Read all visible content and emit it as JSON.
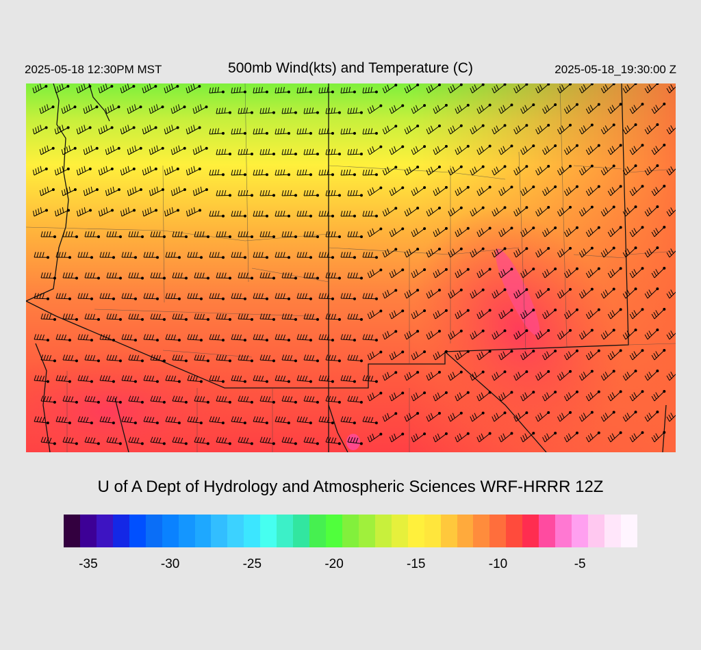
{
  "header": {
    "local_time": "2025-05-18 12:30PM MST",
    "title": "500mb Wind(kts) and Temperature (C)",
    "utc_time": "2025-05-18_19:30:00 Z"
  },
  "credit": "U of A Dept of Hydrology and Atmospheric Sciences WRF-HRRR 12Z",
  "colorbar": {
    "colors": [
      "#33003f",
      "#3d0096",
      "#3d14c2",
      "#1428e6",
      "#0050ff",
      "#0a6ef7",
      "#0a82ff",
      "#1496ff",
      "#1ea8ff",
      "#32beff",
      "#3cd2ff",
      "#3ce6ff",
      "#46fff0",
      "#3cf0c8",
      "#32e6a0",
      "#46f050",
      "#50ff3c",
      "#82f03c",
      "#a0f03c",
      "#c8f03c",
      "#e6f03c",
      "#fff03c",
      "#ffe63c",
      "#ffc83c",
      "#ffaa3c",
      "#ff8c3c",
      "#ff6e3c",
      "#ff4b3c",
      "#ff2d50",
      "#ff4ba0",
      "#ff78d2",
      "#ffa0f0",
      "#ffc8f0",
      "#ffe6fa",
      "#fff5ff"
    ],
    "tick_labels": [
      "-35",
      "-30",
      "-25",
      "-20",
      "-15",
      "-10",
      "-5"
    ],
    "tick_values": [
      -35,
      -30,
      -25,
      -20,
      -15,
      -10,
      -5
    ],
    "min": -36,
    "max": -1
  },
  "map": {
    "variable": "500mb temperature (C) with wind barbs (kts)",
    "temp_range_shown": [
      -20,
      -5
    ],
    "coldest_area": "north (green)",
    "warmest_area": "east-central and south (red/pink)"
  }
}
